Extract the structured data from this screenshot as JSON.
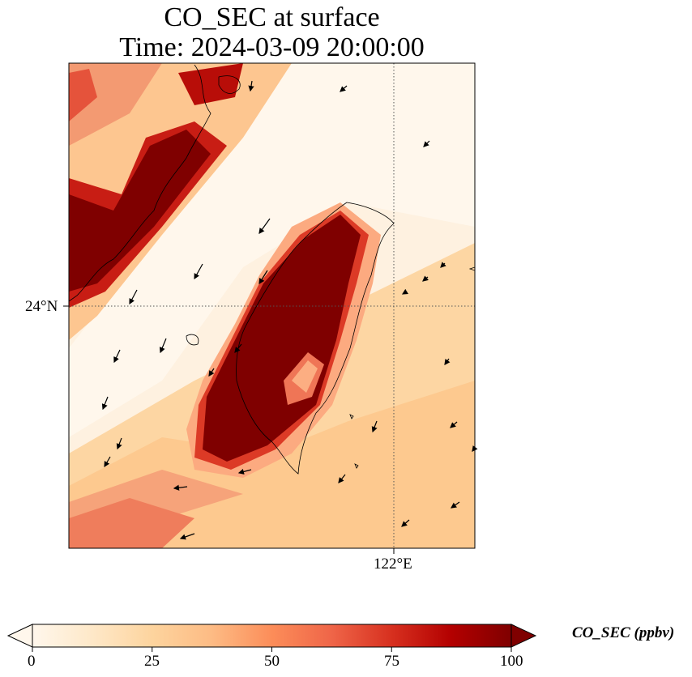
{
  "title": {
    "line1": "CO_SEC at surface",
    "line2": "Time: 2024-03-09 20:00:00"
  },
  "map": {
    "lat_labels": [
      "24°N"
    ],
    "lon_labels": [
      "122°E"
    ],
    "gridline_style": "dotted"
  },
  "colorbar": {
    "label": "CO_SEC (ppbv)",
    "min": 0,
    "max": 100,
    "ticks": [
      "0",
      "25",
      "50",
      "75",
      "100"
    ],
    "colormap": "OrRd",
    "extend": "both",
    "colors": [
      "#fff7ec",
      "#fee8c8",
      "#fdd49e",
      "#fdbb84",
      "#fc8d59",
      "#ef6548",
      "#d7301f",
      "#b30000",
      "#7f0000"
    ]
  },
  "plume": {
    "description_levels": "high concentration over Taiwan western plains and Fujian coast; clean band in Taiwan Strait and east of Taiwan"
  }
}
